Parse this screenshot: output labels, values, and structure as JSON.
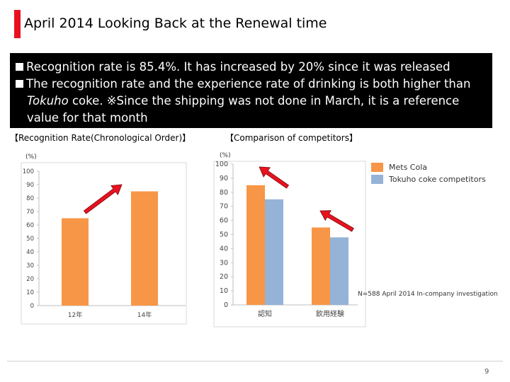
{
  "page": {
    "title": "April 2014 Looking Back at the Renewal time",
    "bullets": [
      "Recognition rate is 85.4%. It has increased by 20% since it was released",
      "The recognition rate and the experience rate of drinking is both higher than"
    ],
    "bullet2_italic": "Tokuho",
    "bullet2_rest": " coke. ※Since the shipping was not done in March, it is a reference",
    "bullet2_line3": "value for that month",
    "page_number": "9",
    "note": "N=588  April 2014  In-company investigation"
  },
  "colors": {
    "title_accent": "#e8121f",
    "mets_cola": "#f79646",
    "tokuho": "#95b3d7",
    "arrow": "#e8121f"
  },
  "chart_data": [
    {
      "type": "bar",
      "title": "【Recognition Rate(Chronological Order)】",
      "ylabel": "(%)",
      "categories": [
        "12年",
        "14年"
      ],
      "values": [
        65,
        85
      ],
      "ylim": [
        0,
        100
      ],
      "yticks": [
        "0",
        "10",
        "20",
        "30",
        "40",
        "50",
        "60",
        "70",
        "80",
        "90",
        "100"
      ],
      "grid": false
    },
    {
      "type": "bar",
      "title": "【Comparison of competitors】",
      "ylabel": "(%)",
      "categories": [
        "認知",
        "飲用経験"
      ],
      "series": [
        {
          "name": "Mets Cola",
          "values": [
            85,
            55
          ]
        },
        {
          "name": "Tokuho coke competitors",
          "values": [
            75,
            48
          ]
        }
      ],
      "ylim": [
        0,
        100
      ],
      "yticks": [
        "0",
        "10",
        "20",
        "30",
        "40",
        "50",
        "60",
        "70",
        "80",
        "90",
        "100"
      ],
      "legend_position": "right",
      "grid": false
    }
  ]
}
